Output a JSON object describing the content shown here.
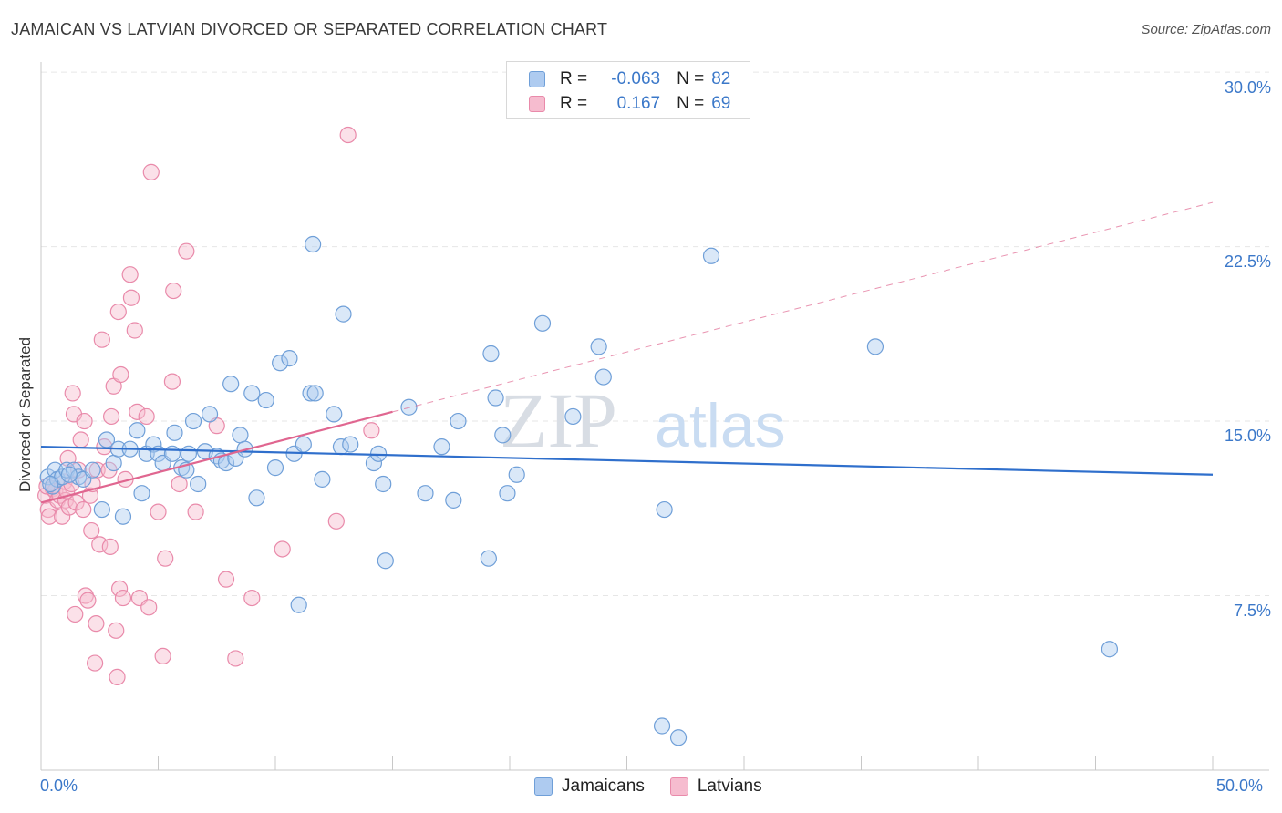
{
  "header": {
    "title": "JAMAICAN VS LATVIAN DIVORCED OR SEPARATED CORRELATION CHART",
    "source": "Source: ZipAtlas.com"
  },
  "legend": {
    "rows": [
      {
        "r_label": "R =",
        "r_value": "-0.063",
        "n_label": "N =",
        "n_value": "82"
      },
      {
        "r_label": "R =",
        "r_value": "0.167",
        "n_label": "N =",
        "n_value": "69"
      }
    ],
    "bottom": [
      "Jamaicans",
      "Latvians"
    ]
  },
  "watermark": {
    "zip": "ZIP",
    "atlas": "atlas"
  },
  "colors": {
    "blue_fill": "#aecbf0",
    "blue_stroke": "#6f9fd8",
    "blue_line": "#2f6fcc",
    "pink_fill": "#f6bccf",
    "pink_stroke": "#e98aaa",
    "pink_line": "#e06690",
    "tick_text": "#3b78c9"
  },
  "chart_data": {
    "type": "scatter",
    "title": "JAMAICAN VS LATVIAN DIVORCED OR SEPARATED CORRELATION CHART",
    "xlabel": "",
    "ylabel": "Divorced or Separated",
    "xlim": [
      0,
      50
    ],
    "ylim": [
      0,
      31
    ],
    "x_tick_labels": [
      "0.0%",
      "50.0%"
    ],
    "y_ticks": [
      7.5,
      15.0,
      22.5,
      30.0
    ],
    "y_tick_labels": [
      "7.5%",
      "15.0%",
      "22.5%",
      "30.0%"
    ],
    "grid": true,
    "legend_position": "top-center",
    "series": [
      {
        "name": "Jamaicans",
        "r": -0.063,
        "n": 82,
        "trend": {
          "x": [
            0,
            50
          ],
          "y": [
            13.9,
            12.7
          ]
        },
        "points": [
          [
            0.3,
            12.6
          ],
          [
            0.5,
            12.2
          ],
          [
            0.6,
            12.9
          ],
          [
            0.7,
            12.5
          ],
          [
            0.9,
            12.6
          ],
          [
            1.1,
            12.9
          ],
          [
            1.4,
            12.9
          ],
          [
            1.6,
            12.6
          ],
          [
            1.8,
            12.5
          ],
          [
            2.2,
            12.9
          ],
          [
            2.6,
            11.2
          ],
          [
            2.8,
            14.2
          ],
          [
            3.1,
            13.2
          ],
          [
            3.3,
            13.8
          ],
          [
            3.5,
            10.9
          ],
          [
            3.8,
            13.8
          ],
          [
            4.1,
            14.6
          ],
          [
            4.3,
            11.9
          ],
          [
            4.5,
            13.6
          ],
          [
            4.8,
            14.0
          ],
          [
            5.0,
            13.6
          ],
          [
            5.2,
            13.2
          ],
          [
            5.6,
            13.6
          ],
          [
            5.7,
            14.5
          ],
          [
            6.0,
            13.0
          ],
          [
            6.2,
            12.9
          ],
          [
            6.3,
            13.6
          ],
          [
            6.5,
            15.0
          ],
          [
            6.7,
            12.3
          ],
          [
            7.0,
            13.7
          ],
          [
            7.2,
            15.3
          ],
          [
            7.5,
            13.5
          ],
          [
            7.7,
            13.3
          ],
          [
            7.9,
            13.2
          ],
          [
            8.1,
            16.6
          ],
          [
            8.3,
            13.4
          ],
          [
            8.5,
            14.4
          ],
          [
            8.7,
            13.8
          ],
          [
            9.0,
            16.2
          ],
          [
            9.2,
            11.7
          ],
          [
            9.6,
            15.9
          ],
          [
            10.0,
            13.0
          ],
          [
            10.2,
            17.5
          ],
          [
            10.6,
            17.7
          ],
          [
            10.8,
            13.6
          ],
          [
            11.0,
            7.1
          ],
          [
            11.2,
            14.0
          ],
          [
            11.5,
            16.2
          ],
          [
            11.7,
            16.2
          ],
          [
            12.0,
            12.5
          ],
          [
            11.6,
            22.6
          ],
          [
            12.5,
            15.3
          ],
          [
            12.8,
            13.9
          ],
          [
            12.9,
            19.6
          ],
          [
            13.2,
            14.0
          ],
          [
            14.2,
            13.2
          ],
          [
            14.4,
            13.6
          ],
          [
            14.6,
            12.3
          ],
          [
            14.7,
            9.0
          ],
          [
            15.7,
            15.6
          ],
          [
            16.4,
            11.9
          ],
          [
            17.1,
            13.9
          ],
          [
            17.6,
            11.6
          ],
          [
            17.8,
            15.0
          ],
          [
            19.1,
            9.1
          ],
          [
            19.2,
            17.9
          ],
          [
            19.4,
            16.0
          ],
          [
            19.7,
            14.4
          ],
          [
            19.9,
            11.9
          ],
          [
            20.3,
            12.7
          ],
          [
            21.4,
            19.2
          ],
          [
            22.7,
            15.2
          ],
          [
            23.8,
            18.2
          ],
          [
            24.0,
            16.9
          ],
          [
            26.6,
            11.2
          ],
          [
            28.6,
            22.1
          ],
          [
            35.6,
            18.2
          ],
          [
            45.6,
            5.2
          ],
          [
            26.5,
            1.9
          ],
          [
            27.2,
            1.4
          ],
          [
            0.4,
            12.3
          ],
          [
            1.2,
            12.7
          ]
        ]
      },
      {
        "name": "Latvians",
        "r": 0.167,
        "n": 69,
        "trend": {
          "x": [
            0,
            15
          ],
          "y": [
            11.5,
            15.4
          ]
        },
        "trend_dashed": {
          "x": [
            15,
            50
          ],
          "y": [
            15.4,
            24.4
          ]
        },
        "points": [
          [
            0.2,
            11.8
          ],
          [
            0.3,
            11.2
          ],
          [
            0.35,
            10.9
          ],
          [
            0.5,
            12.1
          ],
          [
            0.6,
            12.0
          ],
          [
            0.7,
            11.6
          ],
          [
            0.8,
            11.8
          ],
          [
            0.9,
            10.9
          ],
          [
            1.0,
            12.4
          ],
          [
            1.05,
            11.6
          ],
          [
            1.1,
            12.0
          ],
          [
            1.15,
            13.4
          ],
          [
            1.2,
            11.3
          ],
          [
            1.3,
            12.3
          ],
          [
            1.35,
            16.2
          ],
          [
            1.4,
            15.3
          ],
          [
            1.45,
            6.7
          ],
          [
            1.5,
            11.5
          ],
          [
            1.6,
            12.9
          ],
          [
            1.7,
            14.2
          ],
          [
            1.8,
            11.2
          ],
          [
            1.85,
            15.0
          ],
          [
            1.9,
            7.5
          ],
          [
            2.0,
            7.3
          ],
          [
            2.1,
            11.8
          ],
          [
            2.15,
            10.3
          ],
          [
            2.2,
            12.3
          ],
          [
            2.3,
            4.6
          ],
          [
            2.35,
            6.3
          ],
          [
            2.4,
            12.9
          ],
          [
            2.5,
            9.7
          ],
          [
            2.6,
            18.5
          ],
          [
            2.7,
            13.9
          ],
          [
            2.9,
            12.9
          ],
          [
            2.95,
            9.6
          ],
          [
            3.0,
            15.2
          ],
          [
            3.1,
            16.5
          ],
          [
            3.2,
            6.0
          ],
          [
            3.25,
            4.0
          ],
          [
            3.3,
            19.7
          ],
          [
            3.35,
            7.8
          ],
          [
            3.4,
            17.0
          ],
          [
            3.5,
            7.4
          ],
          [
            3.6,
            12.5
          ],
          [
            3.8,
            21.3
          ],
          [
            3.85,
            20.3
          ],
          [
            4.0,
            18.9
          ],
          [
            4.1,
            15.4
          ],
          [
            4.2,
            7.4
          ],
          [
            4.5,
            15.2
          ],
          [
            4.6,
            7.0
          ],
          [
            4.7,
            25.7
          ],
          [
            5.0,
            11.1
          ],
          [
            5.2,
            4.9
          ],
          [
            5.3,
            9.1
          ],
          [
            5.6,
            16.7
          ],
          [
            5.65,
            20.6
          ],
          [
            5.9,
            12.3
          ],
          [
            6.2,
            22.3
          ],
          [
            6.6,
            11.1
          ],
          [
            7.5,
            14.8
          ],
          [
            7.9,
            8.2
          ],
          [
            8.3,
            4.8
          ],
          [
            9.0,
            7.4
          ],
          [
            10.3,
            9.5
          ],
          [
            12.6,
            10.7
          ],
          [
            13.1,
            27.3
          ],
          [
            14.1,
            14.6
          ],
          [
            0.25,
            12.2
          ]
        ]
      }
    ]
  }
}
